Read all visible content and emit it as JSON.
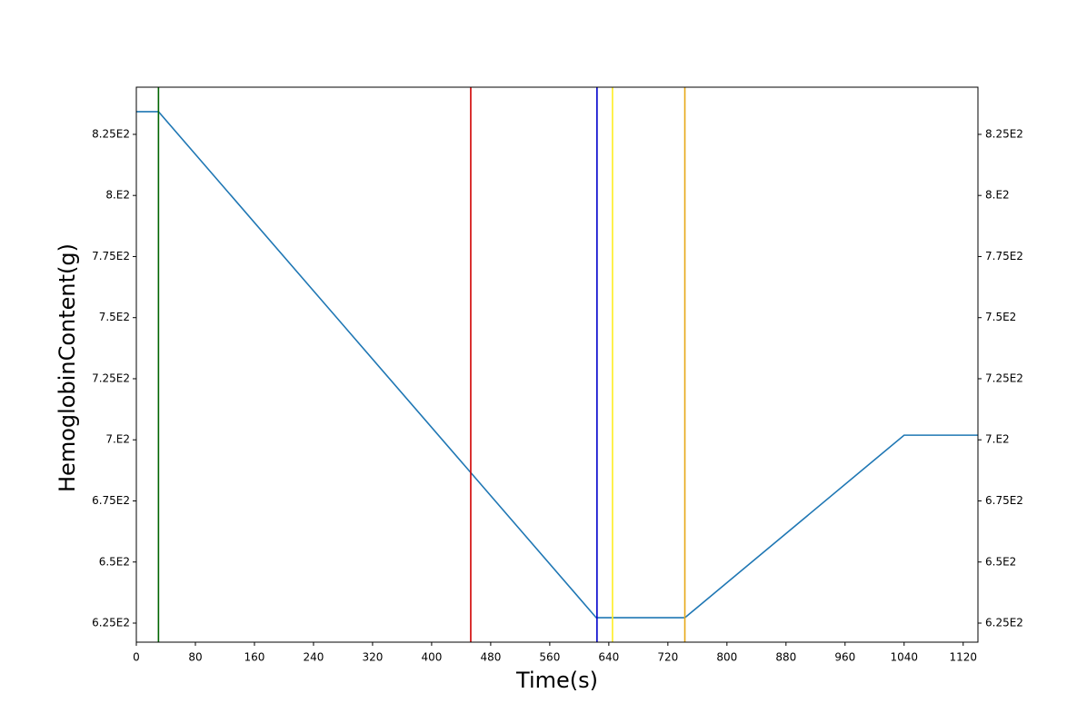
{
  "chart_data": {
    "type": "line",
    "x_label": "Time(s)",
    "y_label": "HemoglobinContent(g)",
    "x": [
      0,
      30,
      623,
      743,
      1040,
      1140
    ],
    "series": [
      {
        "color": "#1f77b4",
        "values": [
          834.3,
          834.3,
          627.2,
          627.2,
          701.9,
          701.9
        ]
      }
    ],
    "vlines": [
      {
        "x": 30,
        "color": "#006400"
      },
      {
        "x": 453,
        "color": "#d00000"
      },
      {
        "x": 624,
        "color": "#0000cc"
      },
      {
        "x": 645,
        "color": "#ffee22"
      },
      {
        "x": 743,
        "color": "#e6a817"
      }
    ],
    "xlim": [
      0,
      1140
    ],
    "xticks": [
      0,
      80,
      160,
      240,
      320,
      400,
      480,
      560,
      640,
      720,
      800,
      880,
      960,
      1040,
      1120
    ],
    "ylim": [
      617.2,
      844.3
    ],
    "yticks": [
      {
        "value": 625,
        "label": "6.25E2"
      },
      {
        "value": 650,
        "label": "6.5E2"
      },
      {
        "value": 675,
        "label": "6.75E2"
      },
      {
        "value": 700,
        "label": "7.E2"
      },
      {
        "value": 725,
        "label": "7.25E2"
      },
      {
        "value": 750,
        "label": "7.5E2"
      },
      {
        "value": 775,
        "label": "7.75E2"
      },
      {
        "value": 800,
        "label": "8.E2"
      },
      {
        "value": 825,
        "label": "8.25E2"
      }
    ],
    "y2lim": [
      617.2,
      844.3
    ],
    "y2ticks": [
      {
        "value": 625,
        "label": "6.25E2"
      },
      {
        "value": 650,
        "label": "6.5E2"
      },
      {
        "value": 675,
        "label": "6.75E2"
      },
      {
        "value": 700,
        "label": "7.E2"
      },
      {
        "value": 725,
        "label": "7.25E2"
      },
      {
        "value": 750,
        "label": "7.5E2"
      },
      {
        "value": 775,
        "label": "7.75E2"
      },
      {
        "value": 800,
        "label": "8.E2"
      },
      {
        "value": 825,
        "label": "8.25E2"
      }
    ],
    "grid": false
  }
}
